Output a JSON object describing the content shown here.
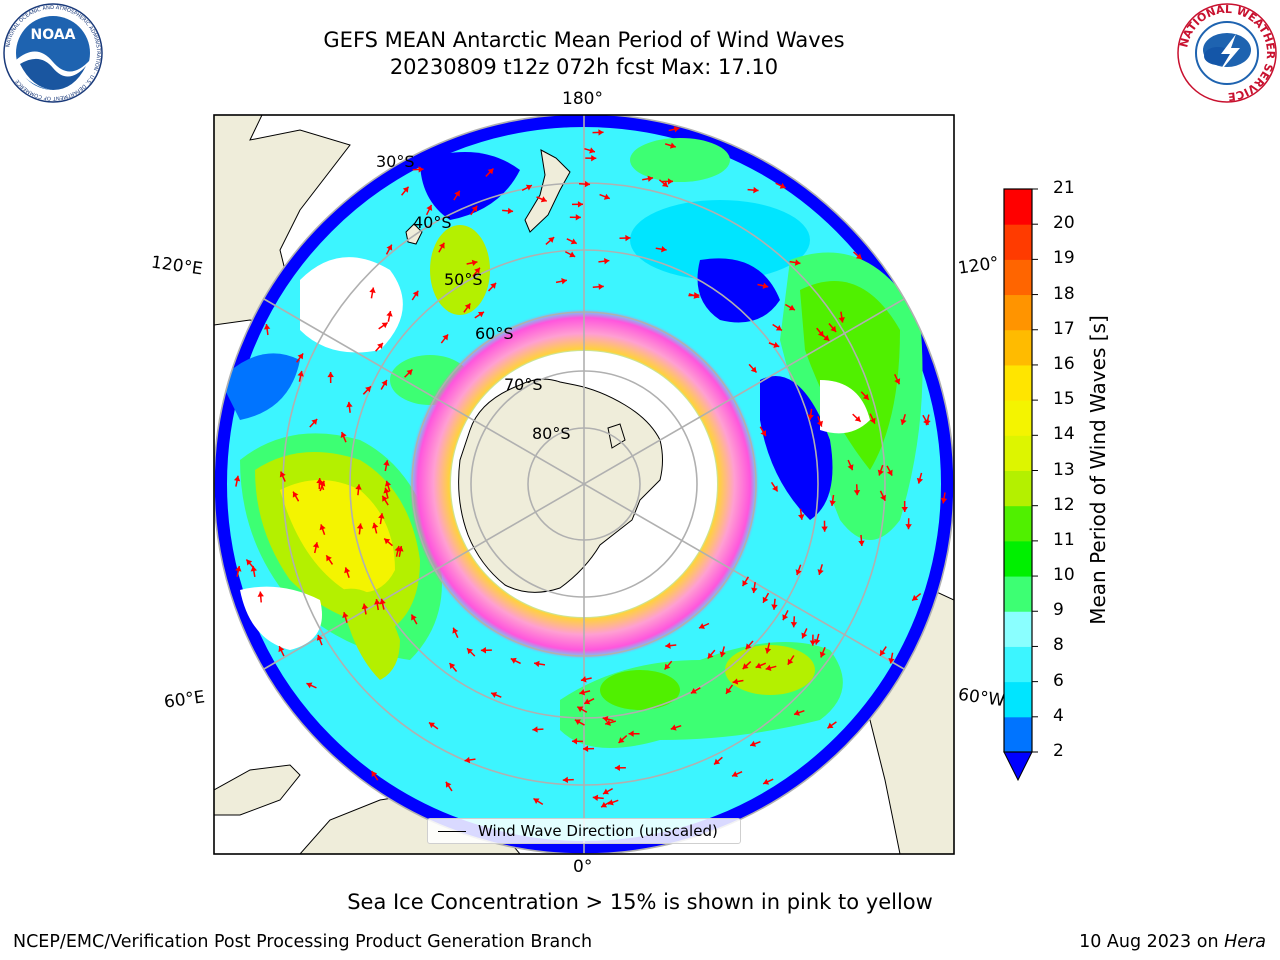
{
  "title": {
    "line1": "GEFS MEAN Antarctic Mean Period of Wind Waves",
    "line2": "20230809 t12z 072h fcst   Max: 17.10"
  },
  "logos": {
    "left": {
      "text": "NOAA",
      "ring_text": "NATIONAL OCEANIC AND ATMOSPHERIC ADMINISTRATION · U.S. DEPARTMENT OF COMMERCE"
    },
    "right": {
      "ring_text": "NATIONAL WEATHER SERVICE"
    }
  },
  "map": {
    "lon_labels": {
      "top": "180°",
      "left_upper": "120°E",
      "right_upper": "120°",
      "left_lower": "60°E",
      "right_lower": "60°W",
      "bottom": "0°"
    },
    "lat_labels": [
      "30°S",
      "40°S",
      "50°S",
      "60°S",
      "70°S",
      "80°S"
    ],
    "legend": "Wind Wave Direction (unscaled)",
    "colors": {
      "land": "#efedda",
      "ice_outer": "#ff55dd",
      "ice_inner": "#ffd23c",
      "arrow": "#ff0000",
      "graticule": "#b0b0b0"
    }
  },
  "colorbar": {
    "label": "Mean Period of Wind Waves [s]",
    "ticks": [
      "2",
      "4",
      "6",
      "8",
      "9",
      "10",
      "11",
      "12",
      "13",
      "14",
      "15",
      "16",
      "17",
      "18",
      "19",
      "20",
      "21"
    ],
    "colors": [
      "#0000ff",
      "#0074ff",
      "#00e5ff",
      "#3cf5ff",
      "#8affff",
      "#3dff73",
      "#00f000",
      "#50f000",
      "#b4f000",
      "#ddf500",
      "#f4f400",
      "#ffe500",
      "#ffbb00",
      "#ff9400",
      "#ff6500",
      "#ff3b00",
      "#ff0000"
    ],
    "extend": "min"
  },
  "bottom_note": "Sea Ice Concentration > 15% is shown in pink to yellow",
  "footer": {
    "left": "NCEP/EMC/Verification Post Processing Product Generation Branch",
    "date": "10 Aug 2023 on",
    "machine": "Hera"
  }
}
